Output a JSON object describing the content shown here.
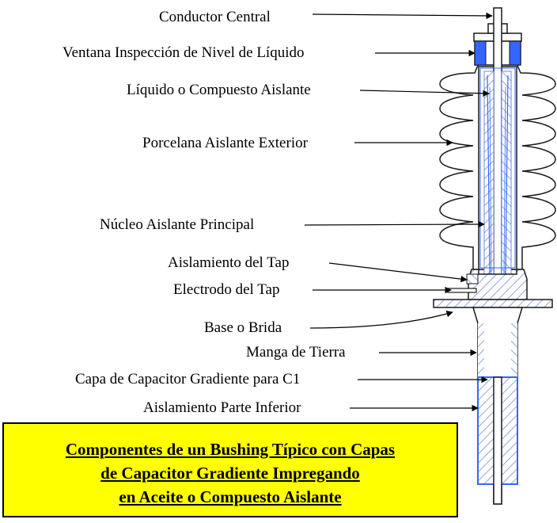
{
  "labels": {
    "conductor": "Conductor Central",
    "window": "Ventana Inspección de Nivel de Líquido",
    "liquid": "Líquido o Compuesto Aislante",
    "porcelain": "Porcelana Aislante Exterior",
    "core": "Núcleo Aislante Principal",
    "tap_insulation": "Aislamiento del Tap",
    "tap_electrode": "Electrodo del Tap",
    "flange": "Base o Brida",
    "ground_sleeve": "Manga de Tierra",
    "capacitor_layer": "Capa de Capacitor Gradiente para C1",
    "lower_insulation": "Aislamiento Parte Inferior"
  },
  "caption": {
    "line1": "Componentes de un Bushing Típico con Capas",
    "line2": "de Capacitor Gradiente Impregando",
    "line3": "en Aceite o Compuesto Aislante"
  },
  "colors": {
    "caption_bg": "#ffff00",
    "blue": "#3366ff",
    "hatch": "#9ab0e6",
    "outline": "#1a1a1a"
  }
}
